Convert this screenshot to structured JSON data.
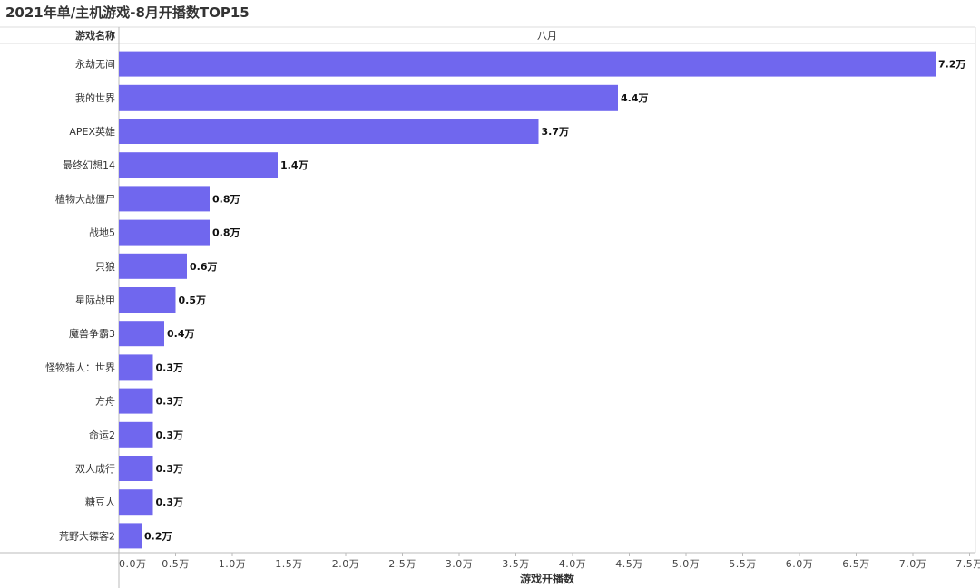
{
  "title": "2021年单/主机游戏-8月开播数TOP15",
  "chart_data": {
    "type": "bar",
    "orientation": "horizontal",
    "title": "2021年单/主机游戏-8月开播数TOP15",
    "row_header": "游戏名称",
    "column_header": "八月",
    "xlabel": "游戏开播数",
    "categories": [
      "永劫无间",
      "我的世界",
      "APEX英雄",
      "最终幻想14",
      "植物大战僵尸",
      "战地5",
      "只狼",
      "星际战甲",
      "魔兽争霸3",
      "怪物猎人：世界",
      "方舟",
      "命运2",
      "双人成行",
      "糖豆人",
      "荒野大镖客2"
    ],
    "values": [
      7.2,
      4.4,
      3.7,
      1.4,
      0.8,
      0.8,
      0.6,
      0.5,
      0.4,
      0.3,
      0.3,
      0.3,
      0.3,
      0.3,
      0.2
    ],
    "value_labels": [
      "7.2万",
      "4.4万",
      "3.7万",
      "1.4万",
      "0.8万",
      "0.8万",
      "0.6万",
      "0.5万",
      "0.4万",
      "0.3万",
      "0.3万",
      "0.3万",
      "0.3万",
      "0.3万",
      "0.2万"
    ],
    "unit": "万",
    "xlim": [
      0,
      7.5
    ],
    "x_ticks": [
      0,
      0.5,
      1.0,
      1.5,
      2.0,
      2.5,
      3.0,
      3.5,
      4.0,
      4.5,
      5.0,
      5.5,
      6.0,
      6.5,
      7.0,
      7.5
    ],
    "x_tick_labels": [
      "0.0万",
      "0.5万",
      "1.0万",
      "1.5万",
      "2.0万",
      "2.5万",
      "3.0万",
      "3.5万",
      "4.0万",
      "4.5万",
      "5.0万",
      "5.5万",
      "6.0万",
      "6.5万",
      "7.0万",
      "7.5万"
    ],
    "grid": false,
    "legend": "none"
  },
  "colors": {
    "bar": "#7067ee",
    "grid_line": "#dddddd",
    "axis_line": "#bbbbbb"
  }
}
